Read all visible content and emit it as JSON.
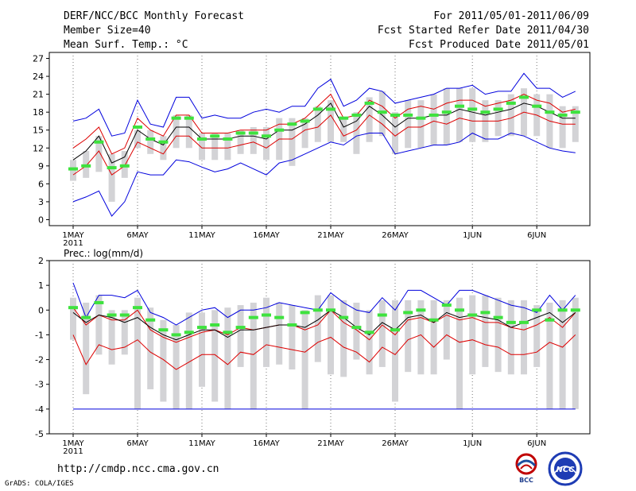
{
  "header": {
    "title": "DERF/NCC/BCC Monthly Forecast",
    "member_size": "Member Size=40",
    "period": "For 2011/05/01-2011/06/09",
    "start_date": "Fcst Started Refer Date 2011/04/30",
    "produced_date": "Fcst Produced Date 2011/05/01"
  },
  "footer": {
    "url": "http://cmdp.ncc.cma.gov.cn",
    "credit": "GrADS: COLA/IGES",
    "logo_bcc": "BCC",
    "logo_ncc": "NCC"
  },
  "chart_data": [
    {
      "type": "line",
      "title": "Mean Surf. Temp.: °C",
      "ylim": [
        -1,
        28
      ],
      "yticks": [
        0,
        3,
        6,
        9,
        12,
        15,
        18,
        21,
        24,
        27
      ],
      "x_ticklabels": [
        "1MAY",
        "6MAY",
        "11MAY",
        "16MAY",
        "21MAY",
        "26MAY",
        "1JUN",
        "6JUN"
      ],
      "x_tick_days": [
        0,
        5,
        10,
        15,
        20,
        25,
        31,
        36
      ],
      "x_year": "2011",
      "n_days": 40,
      "series": [
        {
          "name": "max",
          "color": "#0000dd",
          "values": [
            16.5,
            17,
            18.5,
            14,
            14.5,
            20,
            16,
            15.5,
            20.5,
            20.5,
            17,
            17.5,
            17,
            17,
            18,
            18.5,
            18,
            19,
            19,
            22,
            23.5,
            19,
            20,
            22,
            21.5,
            19.5,
            20,
            20.5,
            21,
            22,
            22,
            22.5,
            21,
            21.5,
            21.5,
            24.5,
            22,
            22,
            20.5,
            21.5
          ]
        },
        {
          "name": "upper",
          "color": "#dd0000",
          "values": [
            12,
            13.5,
            15.5,
            11,
            12,
            17,
            15,
            14,
            17.5,
            17.5,
            14.5,
            14.5,
            14.5,
            15,
            15,
            15,
            16,
            16,
            17,
            19,
            21,
            17,
            17.5,
            20,
            19,
            17,
            18.5,
            19,
            18.5,
            19.5,
            20,
            20,
            19,
            19.5,
            20,
            21,
            20,
            19.5,
            18,
            18.5
          ]
        },
        {
          "name": "mean",
          "color": "#000000",
          "values": [
            10,
            11.5,
            14,
            9.5,
            10.5,
            15,
            13.5,
            12.5,
            15.5,
            15.5,
            13.5,
            13.5,
            13.5,
            14,
            14,
            13.5,
            15,
            15,
            16,
            17.5,
            19.5,
            15.5,
            16.5,
            19,
            17.5,
            15.5,
            17,
            17,
            17.5,
            17.5,
            18.5,
            18,
            17.5,
            18,
            18.5,
            19.5,
            19,
            18,
            17,
            17
          ]
        },
        {
          "name": "lower",
          "color": "#dd0000",
          "values": [
            7.5,
            9,
            11.5,
            7.5,
            9,
            13,
            12,
            11,
            14,
            14,
            12,
            12,
            12,
            12.5,
            13,
            12,
            13.5,
            13.5,
            15,
            15.5,
            17.5,
            14,
            15,
            17.5,
            16,
            14,
            15.5,
            15.5,
            16.5,
            16,
            17,
            16.5,
            16.5,
            16.5,
            17,
            18,
            17.5,
            16.5,
            16,
            16
          ]
        },
        {
          "name": "min",
          "color": "#0000dd",
          "values": [
            3,
            3.8,
            4.8,
            0.6,
            3,
            8,
            7.5,
            7.5,
            10,
            9.7,
            8.8,
            8,
            8.5,
            9.5,
            8.5,
            7.5,
            9.5,
            10,
            11,
            12,
            13,
            12.5,
            14,
            14.5,
            14.5,
            11,
            11.5,
            12,
            12.5,
            12.5,
            13,
            14.5,
            13.5,
            13.5,
            14.5,
            14,
            13,
            12,
            11.5,
            11.2
          ]
        }
      ],
      "observed_label": "observation (green)",
      "observed": [
        8.5,
        9,
        13,
        8.7,
        9,
        15.5,
        13.5,
        13,
        17,
        17,
        13.5,
        14,
        13.5,
        14.5,
        14.5,
        14,
        15,
        16,
        16.5,
        18.5,
        18.5,
        17,
        17.5,
        19.5,
        18,
        17.5,
        17.5,
        17,
        17.5,
        18,
        19,
        18.5,
        18,
        18.5,
        19.5,
        20.5,
        19,
        18,
        17.5,
        18
      ],
      "range_label": "ensemble spread (grey bars)",
      "bar_low": [
        6.5,
        7,
        8,
        3,
        7,
        12,
        11,
        10,
        12,
        12,
        10,
        10,
        10,
        11,
        11,
        10,
        10,
        9,
        12,
        13,
        13,
        13,
        11,
        13,
        14,
        11,
        12,
        12,
        12.5,
        12.5,
        13,
        13,
        13,
        14,
        14,
        14,
        14,
        12,
        12,
        13
      ],
      "bar_high": [
        10,
        11.5,
        14,
        11,
        11.5,
        15,
        15,
        14,
        17.5,
        17.5,
        14.5,
        14.5,
        14.5,
        15,
        15.5,
        15.5,
        17,
        17,
        17,
        19,
        20,
        17,
        18,
        20.5,
        21.5,
        18,
        20,
        20,
        21,
        22,
        22,
        22,
        20,
        20,
        21,
        22,
        21,
        21,
        19,
        19
      ]
    },
    {
      "type": "line",
      "title": "Prec.: log(mm/d)",
      "ylim": [
        -5,
        2
      ],
      "yticks": [
        -5,
        -4,
        -3,
        -2,
        -1,
        0,
        1,
        2
      ],
      "x_ticklabels": [
        "1MAY",
        "6MAY",
        "11MAY",
        "16MAY",
        "21MAY",
        "26MAY",
        "1JUN",
        "6JUN"
      ],
      "x_tick_days": [
        0,
        5,
        10,
        15,
        20,
        25,
        31,
        36
      ],
      "x_year": "2011",
      "n_days": 40,
      "series": [
        {
          "name": "max",
          "color": "#0000dd",
          "values": [
            1.1,
            -0.3,
            0.6,
            0.6,
            0.5,
            0.8,
            -0.1,
            -0.3,
            -0.6,
            -0.3,
            0,
            0.1,
            -0.3,
            0,
            0,
            0.1,
            0.3,
            0.2,
            0.1,
            0,
            0.7,
            0.3,
            0,
            -0.1,
            0.5,
            0,
            0.8,
            0.8,
            0.5,
            0.2,
            0.8,
            0.8,
            0.6,
            0.4,
            0.2,
            0.1,
            -0.1,
            0.6,
            0,
            0.6
          ]
        },
        {
          "name": "upper",
          "color": "#dd0000",
          "values": [
            0.1,
            -0.6,
            -0.2,
            -0.4,
            -0.4,
            0,
            -0.8,
            -1.1,
            -1.3,
            -1.1,
            -0.9,
            -0.8,
            -1,
            -0.7,
            -0.8,
            -0.7,
            -0.6,
            -0.6,
            -0.8,
            -0.6,
            0,
            -0.5,
            -0.8,
            -1.2,
            -0.6,
            -1,
            -0.4,
            -0.3,
            -0.5,
            -0.2,
            -0.4,
            -0.3,
            -0.5,
            -0.5,
            -0.7,
            -0.8,
            -0.6,
            -0.3,
            -0.7,
            -0.1
          ]
        },
        {
          "name": "mean",
          "color": "#000000",
          "values": [
            -0.1,
            -0.5,
            -0.2,
            -0.3,
            -0.5,
            -0.3,
            -0.7,
            -1,
            -1.2,
            -1,
            -0.8,
            -0.8,
            -1.1,
            -0.8,
            -0.8,
            -0.7,
            -0.6,
            -0.6,
            -0.7,
            -0.4,
            0,
            -0.3,
            -0.7,
            -1,
            -0.5,
            -0.8,
            -0.3,
            -0.2,
            -0.5,
            -0.1,
            -0.3,
            -0.2,
            -0.3,
            -0.4,
            -0.7,
            -0.5,
            -0.3,
            -0.1,
            -0.5,
            -0.1
          ]
        },
        {
          "name": "lower",
          "color": "#dd0000",
          "values": [
            -1,
            -2.2,
            -1.4,
            -1.6,
            -1.5,
            -1.2,
            -1.7,
            -2,
            -2.4,
            -2.1,
            -1.8,
            -1.8,
            -2.2,
            -1.7,
            -1.8,
            -1.4,
            -1.5,
            -1.6,
            -1.7,
            -1.3,
            -1.1,
            -1.5,
            -1.7,
            -2.1,
            -1.5,
            -1.8,
            -1.2,
            -1,
            -1.5,
            -1,
            -1.3,
            -1.2,
            -1.4,
            -1.5,
            -1.8,
            -1.8,
            -1.7,
            -1.3,
            -1.5,
            -1
          ]
        },
        {
          "name": "min",
          "color": "#0000dd",
          "values": [
            -4,
            -4,
            -4,
            -4,
            -4,
            -4,
            -4,
            -4,
            -4,
            -4,
            -4,
            -4,
            -4,
            -4,
            -4,
            -4,
            -4,
            -4,
            -4,
            -4,
            -4,
            -4,
            -4,
            -4,
            -4,
            -4,
            -4,
            -4,
            -4,
            -4,
            -4,
            -4,
            -4,
            -4,
            -4,
            -4,
            -4,
            -4,
            -4,
            -4
          ]
        }
      ],
      "observed_label": "observation (green)",
      "observed": [
        0.1,
        -0.3,
        0.3,
        -0.2,
        -0.2,
        0.1,
        -0.4,
        -0.8,
        -1,
        -0.9,
        -0.7,
        -0.6,
        -0.9,
        -0.7,
        -0.3,
        -0.2,
        -0.3,
        -0.6,
        -0.1,
        0,
        0,
        -0.3,
        -0.7,
        -0.9,
        -0.2,
        -0.8,
        -0.1,
        0,
        -0.4,
        0.2,
        0,
        -0.2,
        -0.1,
        -0.3,
        -0.5,
        -0.5,
        0,
        -0.4,
        0,
        0
      ],
      "range_label": "ensemble spread (grey bars)",
      "bar_low": [
        -1.2,
        -3.4,
        -1.8,
        -2.2,
        -1.8,
        -4,
        -3.2,
        -3.7,
        -4,
        -4,
        -3.1,
        -3.7,
        -4,
        -2.3,
        -4,
        -2.3,
        -2.2,
        -2.4,
        -4,
        -2.1,
        -2.6,
        -2.7,
        -2,
        -2.6,
        -2.3,
        -3.7,
        -2.5,
        -2.6,
        -2.6,
        -2,
        -4,
        -2.6,
        -2.3,
        -2.5,
        -2.6,
        -2.6,
        -2.3,
        -4,
        -4,
        -4
      ],
      "bar_high": [
        0.5,
        0.3,
        0.6,
        0,
        0,
        0.5,
        0.1,
        -0.4,
        -0.6,
        -0.1,
        -0.1,
        0,
        0.1,
        0.2,
        0.3,
        0.5,
        0.3,
        0.2,
        0,
        0.6,
        0.6,
        0.4,
        0.3,
        0,
        0.4,
        0.4,
        0.4,
        0.4,
        0.4,
        0.4,
        0.5,
        0.6,
        0.6,
        0.5,
        0.4,
        0.4,
        0.2,
        0.3,
        0.4,
        0.5
      ]
    }
  ]
}
